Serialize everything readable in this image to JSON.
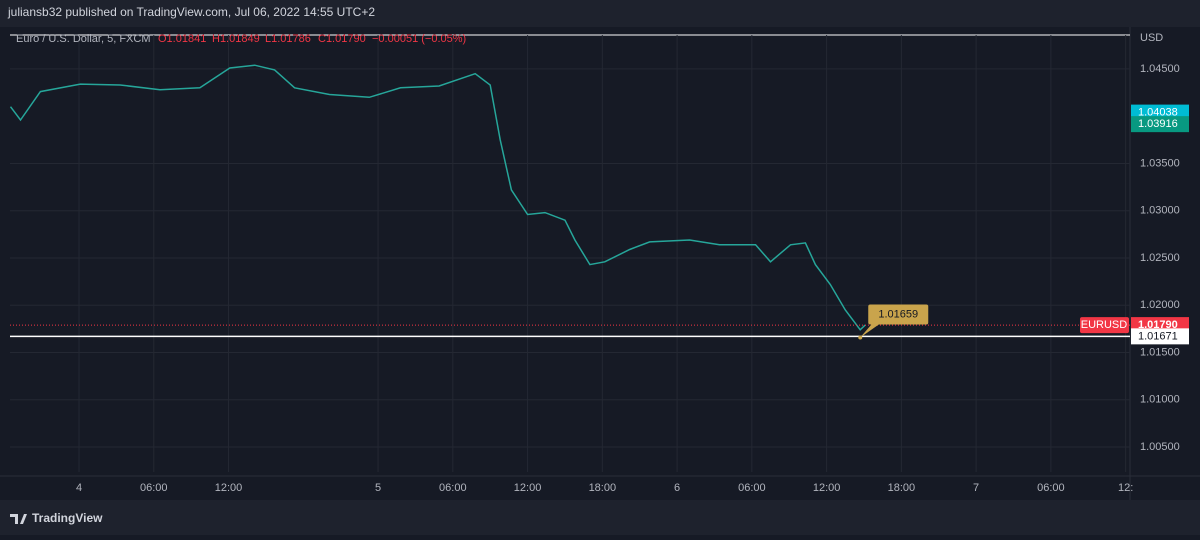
{
  "header": {
    "text": "juliansb32 published on TradingView.com, Jul 06, 2022 14:55 UTC+2"
  },
  "legend": {
    "symbol": "Euro / U.S. Dollar, 5, FXCM",
    "open": "O1.01841",
    "high": "H1.01849",
    "low": "L1.01786",
    "close": "C1.01790",
    "change": "−0.00051 (−0.05%)"
  },
  "footer": {
    "brand": "TradingView"
  },
  "chart_data": {
    "type": "line",
    "currency": "USD",
    "x": [
      -5.5,
      -4.7,
      -3.1,
      0.1,
      3.3,
      6.5,
      9.7,
      12.1,
      14.1,
      15.7,
      17.3,
      20.1,
      23.3,
      25.8,
      28.9,
      31.8,
      33.0,
      33.8,
      34.7,
      36.0,
      37.4,
      39.0,
      39.8,
      41.0,
      42.2,
      44.2,
      45.8,
      49.0,
      51.4,
      54.3,
      55.5,
      57.1,
      58.3,
      59.1,
      60.3,
      61.5,
      62.7,
      63.1
    ],
    "series": [
      {
        "name": "EURUSD",
        "color": "#26a69a",
        "values": [
          1.041,
          1.0396,
          1.0426,
          1.0434,
          1.0433,
          1.0428,
          1.043,
          1.0451,
          1.0454,
          1.0449,
          1.043,
          1.0423,
          1.042,
          1.043,
          1.0432,
          1.0445,
          1.0433,
          1.0375,
          1.0322,
          1.0296,
          1.0298,
          1.029,
          1.0269,
          1.0243,
          1.0246,
          1.0259,
          1.0267,
          1.0269,
          1.0264,
          1.0264,
          1.0246,
          1.0264,
          1.0266,
          1.0243,
          1.0222,
          1.0195,
          1.0174,
          1.0179
        ]
      }
    ],
    "xlim": [
      -5.54,
      84.35
    ],
    "xticks": [
      {
        "value": 0,
        "label": "4"
      },
      {
        "value": 6,
        "label": "06:00"
      },
      {
        "value": 12,
        "label": "12:00"
      },
      {
        "value": 24,
        "label": "5"
      },
      {
        "value": 30,
        "label": "06:00"
      },
      {
        "value": 36,
        "label": "12:00"
      },
      {
        "value": 42,
        "label": "18:00"
      },
      {
        "value": 48,
        "label": "6"
      },
      {
        "value": 54,
        "label": "06:00"
      },
      {
        "value": 60,
        "label": "12:00"
      },
      {
        "value": 66,
        "label": "18:00"
      },
      {
        "value": 72,
        "label": "7"
      },
      {
        "value": 78,
        "label": "06:00"
      },
      {
        "value": 84,
        "label": "12:"
      }
    ],
    "ylim": [
      1.00236,
      1.04859
    ],
    "yticks": [
      {
        "value": 1.005,
        "label": "1.00500"
      },
      {
        "value": 1.01,
        "label": "1.01000"
      },
      {
        "value": 1.015,
        "label": "1.01500"
      },
      {
        "value": 1.02,
        "label": "1.02000"
      },
      {
        "value": 1.025,
        "label": "1.02500"
      },
      {
        "value": 1.03,
        "label": "1.03000"
      },
      {
        "value": 1.035,
        "label": "1.03500"
      },
      {
        "value": 1.045,
        "label": "1.04500"
      }
    ],
    "grid": true,
    "last_price": {
      "value": 1.0179,
      "label": "1.01790",
      "color": "#f23645"
    },
    "price_labels": [
      {
        "value": 1.04038,
        "label": "1.04038",
        "color": "#00bcd4"
      },
      {
        "value": 1.03916,
        "label": "1.03916",
        "color": "#089981"
      }
    ],
    "horizontal_line": {
      "value": 1.01671,
      "label": "1.01671"
    },
    "annotation": {
      "x": 62.7,
      "value": 1.01659,
      "label": "1.01659"
    }
  }
}
